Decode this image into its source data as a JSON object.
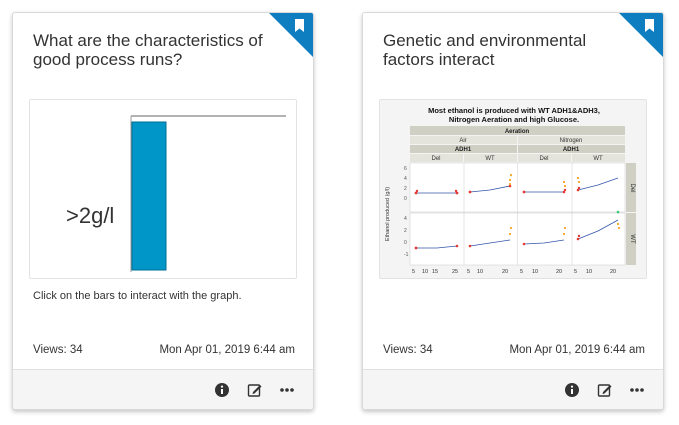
{
  "colors": {
    "accent": "#0f7ec1",
    "bar": "#0096c8",
    "bar_border": "#006f96",
    "footer_bg": "#f5f5f5"
  },
  "cards": [
    {
      "title": "What are the characteristics of good process runs?",
      "thumbnail_label": ">2g/l",
      "description": "Click on the bars to interact with the graph.",
      "views": "Views: 34",
      "date": "Mon Apr 01, 2019 6:44 am",
      "icons": [
        "bookmark-icon",
        "info-icon",
        "edit-icon",
        "more-icon"
      ]
    },
    {
      "title": "Genetic and environmental factors interact",
      "views": "Views: 34",
      "date": "Mon Apr 01, 2019 6:44 am",
      "icons": [
        "bookmark-icon",
        "info-icon",
        "edit-icon",
        "more-icon"
      ],
      "chart": {
        "title_line1": "Most ethanol is produced with WT ADH1&ADH3,",
        "title_line2": "Nitrogen Aeration and high Glucose.",
        "aeration_label": "Aeration",
        "air_label": "Air",
        "nitrogen_label": "Nitrogen",
        "adh1_label": "ADH1",
        "del_label": "Del",
        "wt_label": "WT",
        "ylabel": "Ethanol produced (g/l)",
        "row_del": "Del",
        "row_wt": "WT",
        "x_ticks": [
          "5",
          "10",
          "15",
          "25",
          "5",
          "10",
          "20",
          "5",
          "10",
          "20",
          "5",
          "10",
          "20"
        ]
      }
    }
  ]
}
